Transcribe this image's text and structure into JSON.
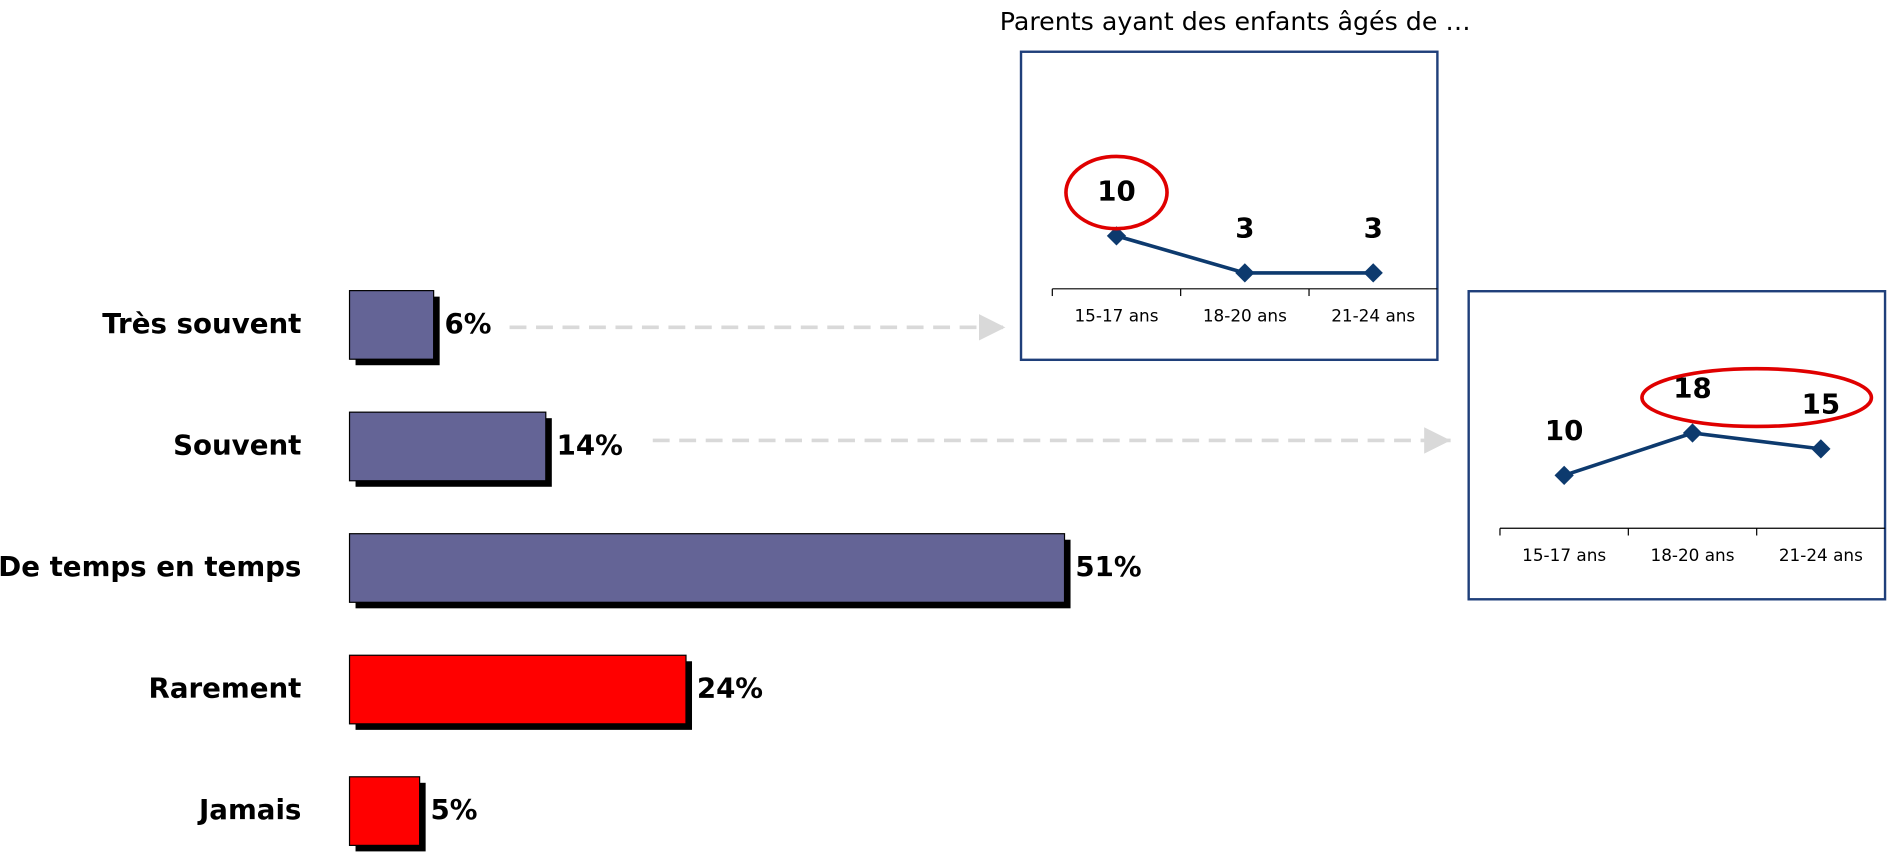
{
  "chart_data": [
    {
      "type": "bar",
      "categories": [
        "Très souvent",
        "Souvent",
        "De temps en temps",
        "Rarement",
        "Jamais"
      ],
      "values": [
        6,
        14,
        51,
        24,
        5
      ],
      "value_labels": [
        "6%",
        "14%",
        "51%",
        "24%",
        "5%"
      ],
      "colors": [
        "#646496",
        "#646496",
        "#646496",
        "#ff0000",
        "#ff0000"
      ]
    },
    {
      "type": "line",
      "title": "Parents ayant des enfants âgés de …",
      "categories": [
        "15-17 ans",
        "18-20 ans",
        "21-24 ans"
      ],
      "values": [
        10,
        3,
        3
      ],
      "color": "#0d3a6e",
      "highlighted": [
        0
      ]
    },
    {
      "type": "line",
      "categories": [
        "15-17 ans",
        "18-20 ans",
        "21-24 ans"
      ],
      "values": [
        10,
        18,
        15
      ],
      "color": "#0d3a6e",
      "highlighted": [
        1,
        2
      ]
    }
  ]
}
